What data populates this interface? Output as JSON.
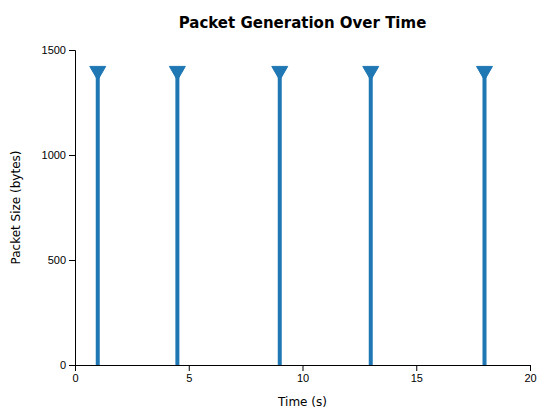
{
  "chart_data": {
    "type": "stem",
    "title": "Packet Generation Over Time",
    "x_label": "Time (s)",
    "y_label": "Packet Size (bytes)",
    "x": [
      1.0,
      4.5,
      9.0,
      13.0,
      18.0
    ],
    "values": [
      1400,
      1400,
      1400,
      1400,
      1400
    ],
    "color": "#1F77B4",
    "marker": "triangle-down",
    "xlim": [
      0,
      20
    ],
    "ylim": [
      0,
      1500
    ],
    "xticks": [
      0,
      5,
      10,
      15,
      20
    ],
    "yticks": [
      0,
      500,
      1000,
      1500
    ],
    "grid": false
  }
}
